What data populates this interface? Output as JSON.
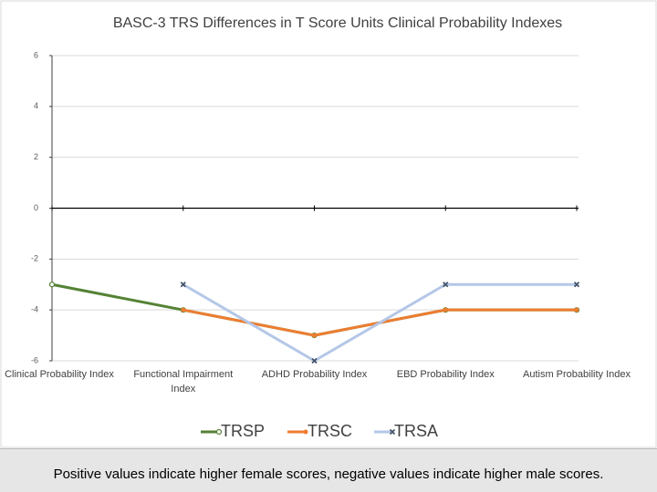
{
  "chart_data": {
    "type": "line",
    "title": "BASC-3 TRS Differences in T Score Units Clinical Probability Indexes",
    "categories": [
      "Clinical Probability Index",
      "Functional Impairment Index",
      "ADHD Probability Index",
      "EBD Probability Index",
      "Autism Probability Index"
    ],
    "series": [
      {
        "name": "TRSP",
        "color": "#548235",
        "values": [
          -3,
          -4,
          -5,
          -4,
          -4
        ]
      },
      {
        "name": "TRSC",
        "color": "#ed7d31",
        "values": [
          null,
          -4,
          -5,
          -4,
          -4
        ]
      },
      {
        "name": "TRSA",
        "color": "#b4c7e7",
        "values": [
          null,
          -3,
          -6,
          -3,
          -3
        ]
      }
    ],
    "ylim": [
      -6,
      6
    ],
    "yticks": [
      -6,
      -4,
      -2,
      0,
      2,
      4,
      6
    ],
    "grid": true,
    "legend": "bottom"
  },
  "footer": {
    "note": "Positive values indicate higher female scores, negative values indicate higher male scores."
  }
}
